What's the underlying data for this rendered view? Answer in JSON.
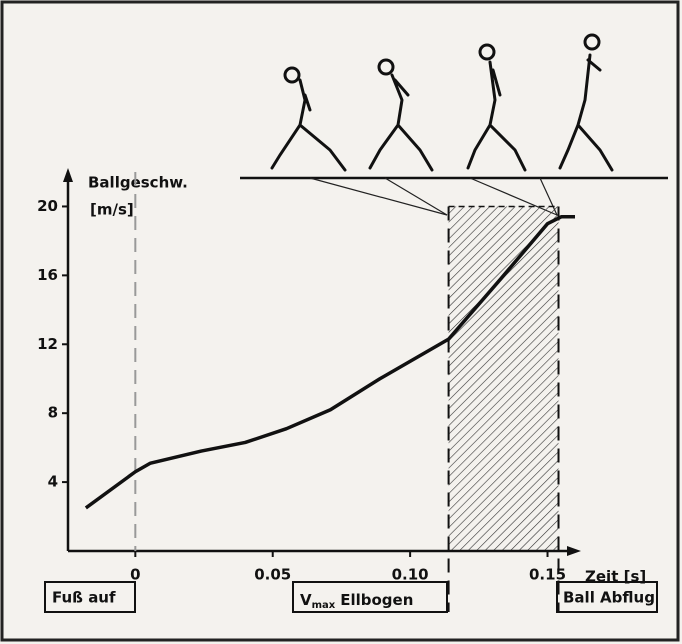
{
  "chart_data": {
    "type": "line",
    "y_label_line1": "Ballgeschw.",
    "y_label_line2": "[m/s]",
    "x_label": "Zeit [s]",
    "annotations": {
      "foot": "Fuß auf",
      "vmax_v": "V",
      "vmax_sub": "max",
      "vmax_rest": "Ellbogen",
      "release": "Ball Abflug"
    },
    "x": [
      -0.018,
      0,
      0.0055,
      0.024,
      0.04,
      0.055,
      0.071,
      0.089,
      0.114,
      0.133,
      0.15,
      0.155,
      0.16
    ],
    "series": [
      {
        "color": "#111111",
        "values": [
          2.5,
          4.6,
          5.1,
          5.8,
          6.3,
          7.1,
          8.2,
          10.0,
          12.3,
          15.8,
          19.0,
          19.4,
          19.4
        ]
      }
    ],
    "shaded_x": [
      0.114,
      0.154
    ],
    "xlim": [
      -0.0245,
      0.16
    ],
    "ylim": [
      0,
      22
    ],
    "xticks": [
      0,
      0.05,
      {
        "value": 0.1,
        "label": "0.10"
      },
      0.15
    ],
    "yticks": [
      4,
      8,
      12,
      16,
      20
    ]
  }
}
